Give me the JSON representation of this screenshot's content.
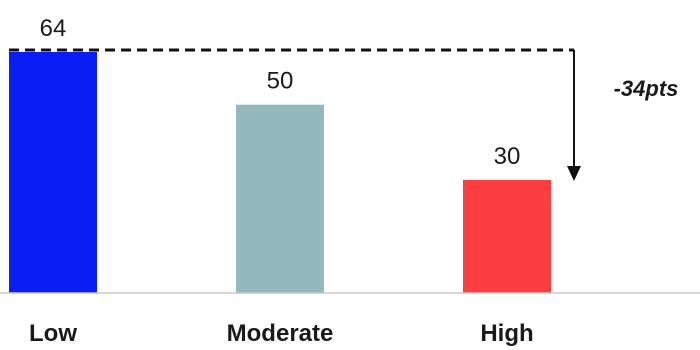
{
  "chart_data": {
    "type": "bar",
    "categories": [
      "Low",
      "Moderate",
      "High"
    ],
    "values": [
      64,
      50,
      30
    ],
    "colors": [
      "#0a1df5",
      "#93b8bd",
      "#fc3d41"
    ],
    "ylim": [
      0,
      64
    ],
    "grid": false,
    "annotation": {
      "label": "-34pts",
      "from_category": "Low",
      "to_category": "High"
    }
  }
}
